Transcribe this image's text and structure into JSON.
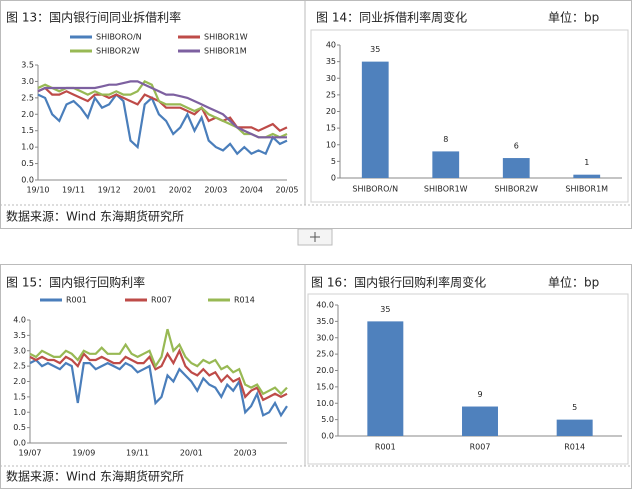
{
  "chart_data": [
    {
      "type": "line",
      "title": "图 13：国内银行间同业拆借利率",
      "source": "数据来源：Wind   东海期货研究所",
      "categories": [
        "19/10",
        null,
        null,
        null,
        null,
        "19/11",
        null,
        null,
        null,
        null,
        "19/12",
        null,
        null,
        null,
        null,
        "20/01",
        null,
        null,
        null,
        null,
        "20/02",
        null,
        null,
        null,
        null,
        "20/03",
        null,
        null,
        null,
        null,
        "20/04",
        null,
        null,
        null,
        null,
        "20/05"
      ],
      "ylim": [
        0,
        3.5
      ],
      "yticks": [
        {
          "value": 0,
          "label": "0.0"
        },
        {
          "value": 0.5,
          "label": "0.5"
        },
        {
          "value": 1,
          "label": "1.0"
        },
        {
          "value": 1.5,
          "label": "1.5"
        },
        {
          "value": 2,
          "label": "2.0"
        },
        {
          "value": 2.5,
          "label": "2.5"
        },
        {
          "value": 3,
          "label": "3.0"
        },
        {
          "value": 3.5,
          "label": "3.5"
        }
      ],
      "series": [
        {
          "name": "SHIBORO/N",
          "color": "#4a7ebb",
          "values": [
            2.6,
            2.5,
            2.0,
            1.8,
            2.3,
            2.4,
            2.2,
            1.9,
            2.5,
            2.2,
            2.3,
            2.6,
            2.4,
            1.2,
            1.0,
            2.3,
            2.5,
            2.0,
            1.8,
            1.4,
            1.6,
            2.0,
            1.5,
            1.9,
            1.2,
            1.0,
            0.9,
            1.1,
            0.8,
            1.0,
            0.8,
            0.9,
            0.8,
            1.3,
            1.1,
            1.2
          ]
        },
        {
          "name": "SHIBOR1W",
          "color": "#be4b48",
          "values": [
            2.7,
            2.8,
            2.6,
            2.6,
            2.7,
            2.6,
            2.5,
            2.4,
            2.6,
            2.6,
            2.5,
            2.6,
            2.5,
            2.4,
            2.3,
            2.6,
            2.5,
            2.4,
            2.2,
            2.2,
            2.2,
            2.1,
            2.0,
            2.2,
            1.8,
            1.9,
            1.8,
            1.9,
            1.6,
            1.6,
            1.6,
            1.5,
            1.6,
            1.7,
            1.5,
            1.6
          ]
        },
        {
          "name": "SHIBOR2W",
          "color": "#98b954",
          "values": [
            2.8,
            2.9,
            2.8,
            2.7,
            2.8,
            2.8,
            2.7,
            2.6,
            2.7,
            2.6,
            2.6,
            2.7,
            2.6,
            2.6,
            2.7,
            3.0,
            2.9,
            2.4,
            2.3,
            2.3,
            2.3,
            2.2,
            2.1,
            2.2,
            2.0,
            1.9,
            1.8,
            1.7,
            1.6,
            1.4,
            1.4,
            1.3,
            1.3,
            1.4,
            1.3,
            1.4
          ]
        },
        {
          "name": "SHIBOR1M",
          "color": "#7d60a0",
          "values": [
            2.7,
            2.8,
            2.8,
            2.8,
            2.8,
            2.8,
            2.8,
            2.8,
            2.8,
            2.85,
            2.9,
            2.9,
            2.95,
            3.0,
            3.0,
            2.9,
            2.8,
            2.7,
            2.6,
            2.6,
            2.55,
            2.5,
            2.4,
            2.3,
            2.2,
            2.1,
            2.0,
            1.8,
            1.6,
            1.5,
            1.4,
            1.3,
            1.3,
            1.3,
            1.3,
            1.3
          ]
        }
      ]
    },
    {
      "type": "bar",
      "title": "图 14：同业拆借利率周变化",
      "unit": "单位：bp",
      "categories": [
        "SHIBORO/N",
        "SHIBOR1W",
        "SHIBOR2W",
        "SHIBOR1M"
      ],
      "values": [
        35,
        8,
        6,
        1
      ],
      "color": "#4f81bd",
      "ylim": [
        0,
        40
      ],
      "yticks": [
        0,
        5,
        10,
        15,
        20,
        25,
        30,
        35,
        40
      ]
    },
    {
      "type": "line",
      "title": "图 15：国内银行回购利率",
      "source": "数据来源：Wind   东海期货研究所",
      "categories": [
        "19/07",
        null,
        null,
        null,
        null,
        null,
        null,
        null,
        null,
        "19/09",
        null,
        null,
        null,
        null,
        null,
        null,
        null,
        null,
        "19/11",
        null,
        null,
        null,
        null,
        null,
        null,
        null,
        null,
        "20/01",
        null,
        null,
        null,
        null,
        null,
        null,
        null,
        null,
        "20/03",
        null,
        null,
        null,
        null,
        null,
        null,
        null
      ],
      "ylim": [
        0,
        4
      ],
      "yticks": [
        {
          "value": 0,
          "label": "0.0"
        },
        {
          "value": 0.5,
          "label": "0.5"
        },
        {
          "value": 1,
          "label": "1.0"
        },
        {
          "value": 1.5,
          "label": "1.5"
        },
        {
          "value": 2,
          "label": "2.0"
        },
        {
          "value": 2.5,
          "label": "2.5"
        },
        {
          "value": 3,
          "label": "3.0"
        },
        {
          "value": 3.5,
          "label": "3.5"
        },
        {
          "value": 4,
          "label": "4.0"
        }
      ],
      "series": [
        {
          "name": "R001",
          "color": "#4a7ebb",
          "values": [
            2.6,
            2.7,
            2.5,
            2.6,
            2.5,
            2.4,
            2.6,
            2.5,
            1.3,
            2.6,
            2.6,
            2.4,
            2.5,
            2.6,
            2.5,
            2.4,
            2.6,
            2.5,
            2.3,
            2.4,
            2.5,
            1.3,
            1.5,
            2.2,
            2.0,
            2.4,
            2.2,
            2.0,
            1.7,
            2.1,
            1.9,
            1.8,
            1.5,
            1.9,
            1.7,
            2.0,
            1.0,
            1.2,
            1.6,
            0.9,
            1.0,
            1.3,
            0.9,
            1.2
          ]
        },
        {
          "name": "R007",
          "color": "#be4b48",
          "values": [
            2.8,
            2.7,
            2.8,
            2.7,
            2.7,
            2.6,
            2.8,
            2.7,
            2.5,
            2.9,
            2.7,
            2.7,
            2.8,
            2.7,
            2.6,
            2.6,
            2.8,
            2.7,
            2.6,
            2.6,
            2.8,
            2.4,
            2.5,
            2.9,
            2.6,
            3.0,
            2.5,
            2.3,
            2.2,
            2.4,
            2.2,
            2.3,
            2.0,
            2.2,
            2.0,
            2.1,
            1.5,
            1.7,
            1.8,
            1.4,
            1.5,
            1.6,
            1.5,
            1.6
          ]
        },
        {
          "name": "R014",
          "color": "#98b954",
          "values": [
            2.9,
            2.8,
            3.0,
            2.9,
            2.8,
            2.8,
            3.0,
            2.9,
            2.7,
            3.0,
            2.9,
            2.9,
            3.1,
            2.9,
            2.9,
            2.9,
            3.2,
            2.9,
            2.8,
            2.9,
            3.0,
            2.5,
            2.8,
            3.7,
            3.0,
            3.2,
            2.8,
            2.6,
            2.5,
            2.7,
            2.6,
            2.7,
            2.4,
            2.5,
            2.3,
            2.4,
            1.9,
            1.8,
            1.9,
            1.6,
            1.7,
            1.8,
            1.6,
            1.8
          ]
        }
      ]
    },
    {
      "type": "bar",
      "title": "图 16：国内银行回购利率周变化",
      "unit": "单位：bp",
      "categories": [
        "R001",
        "R007",
        "R014"
      ],
      "values": [
        35,
        9,
        5
      ],
      "color": "#4f81bd",
      "ylim": [
        0,
        40
      ],
      "yticks": [
        {
          "value": 0,
          "label": "0.0"
        },
        {
          "value": 5,
          "label": "5.0"
        },
        {
          "value": 10,
          "label": "10.0"
        },
        {
          "value": 15,
          "label": "15.0"
        },
        {
          "value": 20,
          "label": "20.0"
        },
        {
          "value": 25,
          "label": "25.0"
        },
        {
          "value": 30,
          "label": "30.0"
        },
        {
          "value": 35,
          "label": "35.0"
        },
        {
          "value": 40,
          "label": "40.0"
        }
      ]
    }
  ]
}
